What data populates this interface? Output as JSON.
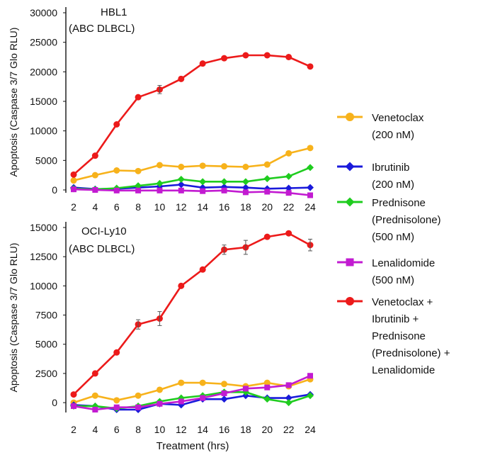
{
  "chart_data": [
    {
      "type": "line",
      "title": "HBL1",
      "subtitle": "(ABC DLBCL)",
      "xlabel": "",
      "ylabel": "Apoptosis (Caspase 3/7 Glo RLU)",
      "ylim": [
        0,
        30000
      ],
      "y_ticks": [
        "0",
        "5000",
        "10000",
        "15000",
        "20000",
        "25000",
        "30000"
      ],
      "x": [
        2,
        4,
        6,
        8,
        10,
        12,
        14,
        16,
        18,
        20,
        22,
        24
      ],
      "series": [
        {
          "name": "Venetoclax (200 nM)",
          "color": "#f7b21b",
          "marker": "circle",
          "values": [
            1600,
            2500,
            3300,
            3200,
            4200,
            3900,
            4100,
            4000,
            3900,
            4300,
            6200,
            7100
          ]
        },
        {
          "name": "Ibrutinib (200 nM)",
          "color": "#1a1adb",
          "marker": "diamond",
          "values": [
            400,
            150,
            200,
            400,
            600,
            900,
            400,
            500,
            400,
            200,
            300,
            400
          ]
        },
        {
          "name": "Prednisone (Prednisolone) (500 nM)",
          "color": "#1fcc1f",
          "marker": "diamond",
          "values": [
            200,
            100,
            300,
            700,
            1100,
            1800,
            1400,
            1400,
            1400,
            1900,
            2300,
            3800
          ]
        },
        {
          "name": "Lenalidomide (500 nM)",
          "color": "#c21bd1",
          "marker": "square",
          "values": [
            100,
            0,
            -100,
            -100,
            -100,
            -100,
            -200,
            -100,
            -400,
            -300,
            -500,
            -900
          ]
        },
        {
          "name": "Venetoclax + Ibrutinib + Prednisone (Prednisolone) + Lenalidomide",
          "color": "#ec1a1a",
          "marker": "circle",
          "values": [
            2600,
            5800,
            11100,
            15700,
            17000,
            18800,
            21400,
            22300,
            22800,
            22800,
            22500,
            20900
          ]
        }
      ]
    },
    {
      "type": "line",
      "title": "OCI-Ly10",
      "subtitle": "(ABC DLBCL)",
      "xlabel": "Treatment (hrs)",
      "ylabel": "Apoptosis (Caspase 3/7 Glo RLU)",
      "ylim": [
        -600,
        15000
      ],
      "y_ticks": [
        "0",
        "2500",
        "5000",
        "7500",
        "10000",
        "12500",
        "15000"
      ],
      "x": [
        2,
        4,
        6,
        8,
        10,
        12,
        14,
        16,
        18,
        20,
        22,
        24
      ],
      "series": [
        {
          "name": "Venetoclax (200 nM)",
          "color": "#f7b21b",
          "marker": "circle",
          "values": [
            0,
            600,
            200,
            600,
            1100,
            1700,
            1700,
            1600,
            1400,
            1700,
            1400,
            2000
          ]
        },
        {
          "name": "Ibrutinib (200 nM)",
          "color": "#1a1adb",
          "marker": "diamond",
          "values": [
            -200,
            -300,
            -600,
            -600,
            -100,
            -200,
            300,
            300,
            600,
            400,
            400,
            700
          ]
        },
        {
          "name": "Prednisone (Prednisolone) (500 nM)",
          "color": "#1fcc1f",
          "marker": "diamond",
          "values": [
            -300,
            -300,
            -500,
            -300,
            100,
            400,
            600,
            900,
            900,
            300,
            0,
            600
          ]
        },
        {
          "name": "Lenalidomide (500 nM)",
          "color": "#c21bd1",
          "marker": "square",
          "values": [
            -300,
            -600,
            -400,
            -400,
            -100,
            100,
            400,
            800,
            1200,
            1300,
            1500,
            2300
          ]
        },
        {
          "name": "Venetoclax + Ibrutinib + Prednisone (Prednisolone) + Lenalidomide",
          "color": "#ec1a1a",
          "marker": "circle",
          "values": [
            700,
            2500,
            4300,
            6700,
            7200,
            10000,
            11400,
            13100,
            13300,
            14200,
            14500,
            13500
          ]
        }
      ]
    }
  ],
  "legend": {
    "placement": "right",
    "entries": [
      {
        "lines": [
          "Venetoclax",
          "(200 nM)"
        ],
        "color": "#f7b21b",
        "marker": "circle"
      },
      {
        "lines": [
          "Ibrutinib",
          "(200 nM)"
        ],
        "color": "#1a1adb",
        "marker": "diamond"
      },
      {
        "lines": [
          "Prednisone",
          "(Prednisolone)",
          "(500 nM)"
        ],
        "color": "#1fcc1f",
        "marker": "diamond"
      },
      {
        "lines": [
          "Lenalidomide",
          "(500 nM)"
        ],
        "color": "#c21bd1",
        "marker": "square"
      },
      {
        "lines": [
          "Venetoclax +",
          "Ibrutinib +",
          "Prednisone",
          "(Prednisolone) +",
          "Lenalidomide"
        ],
        "color": "#ec1a1a",
        "marker": "circle"
      }
    ]
  }
}
